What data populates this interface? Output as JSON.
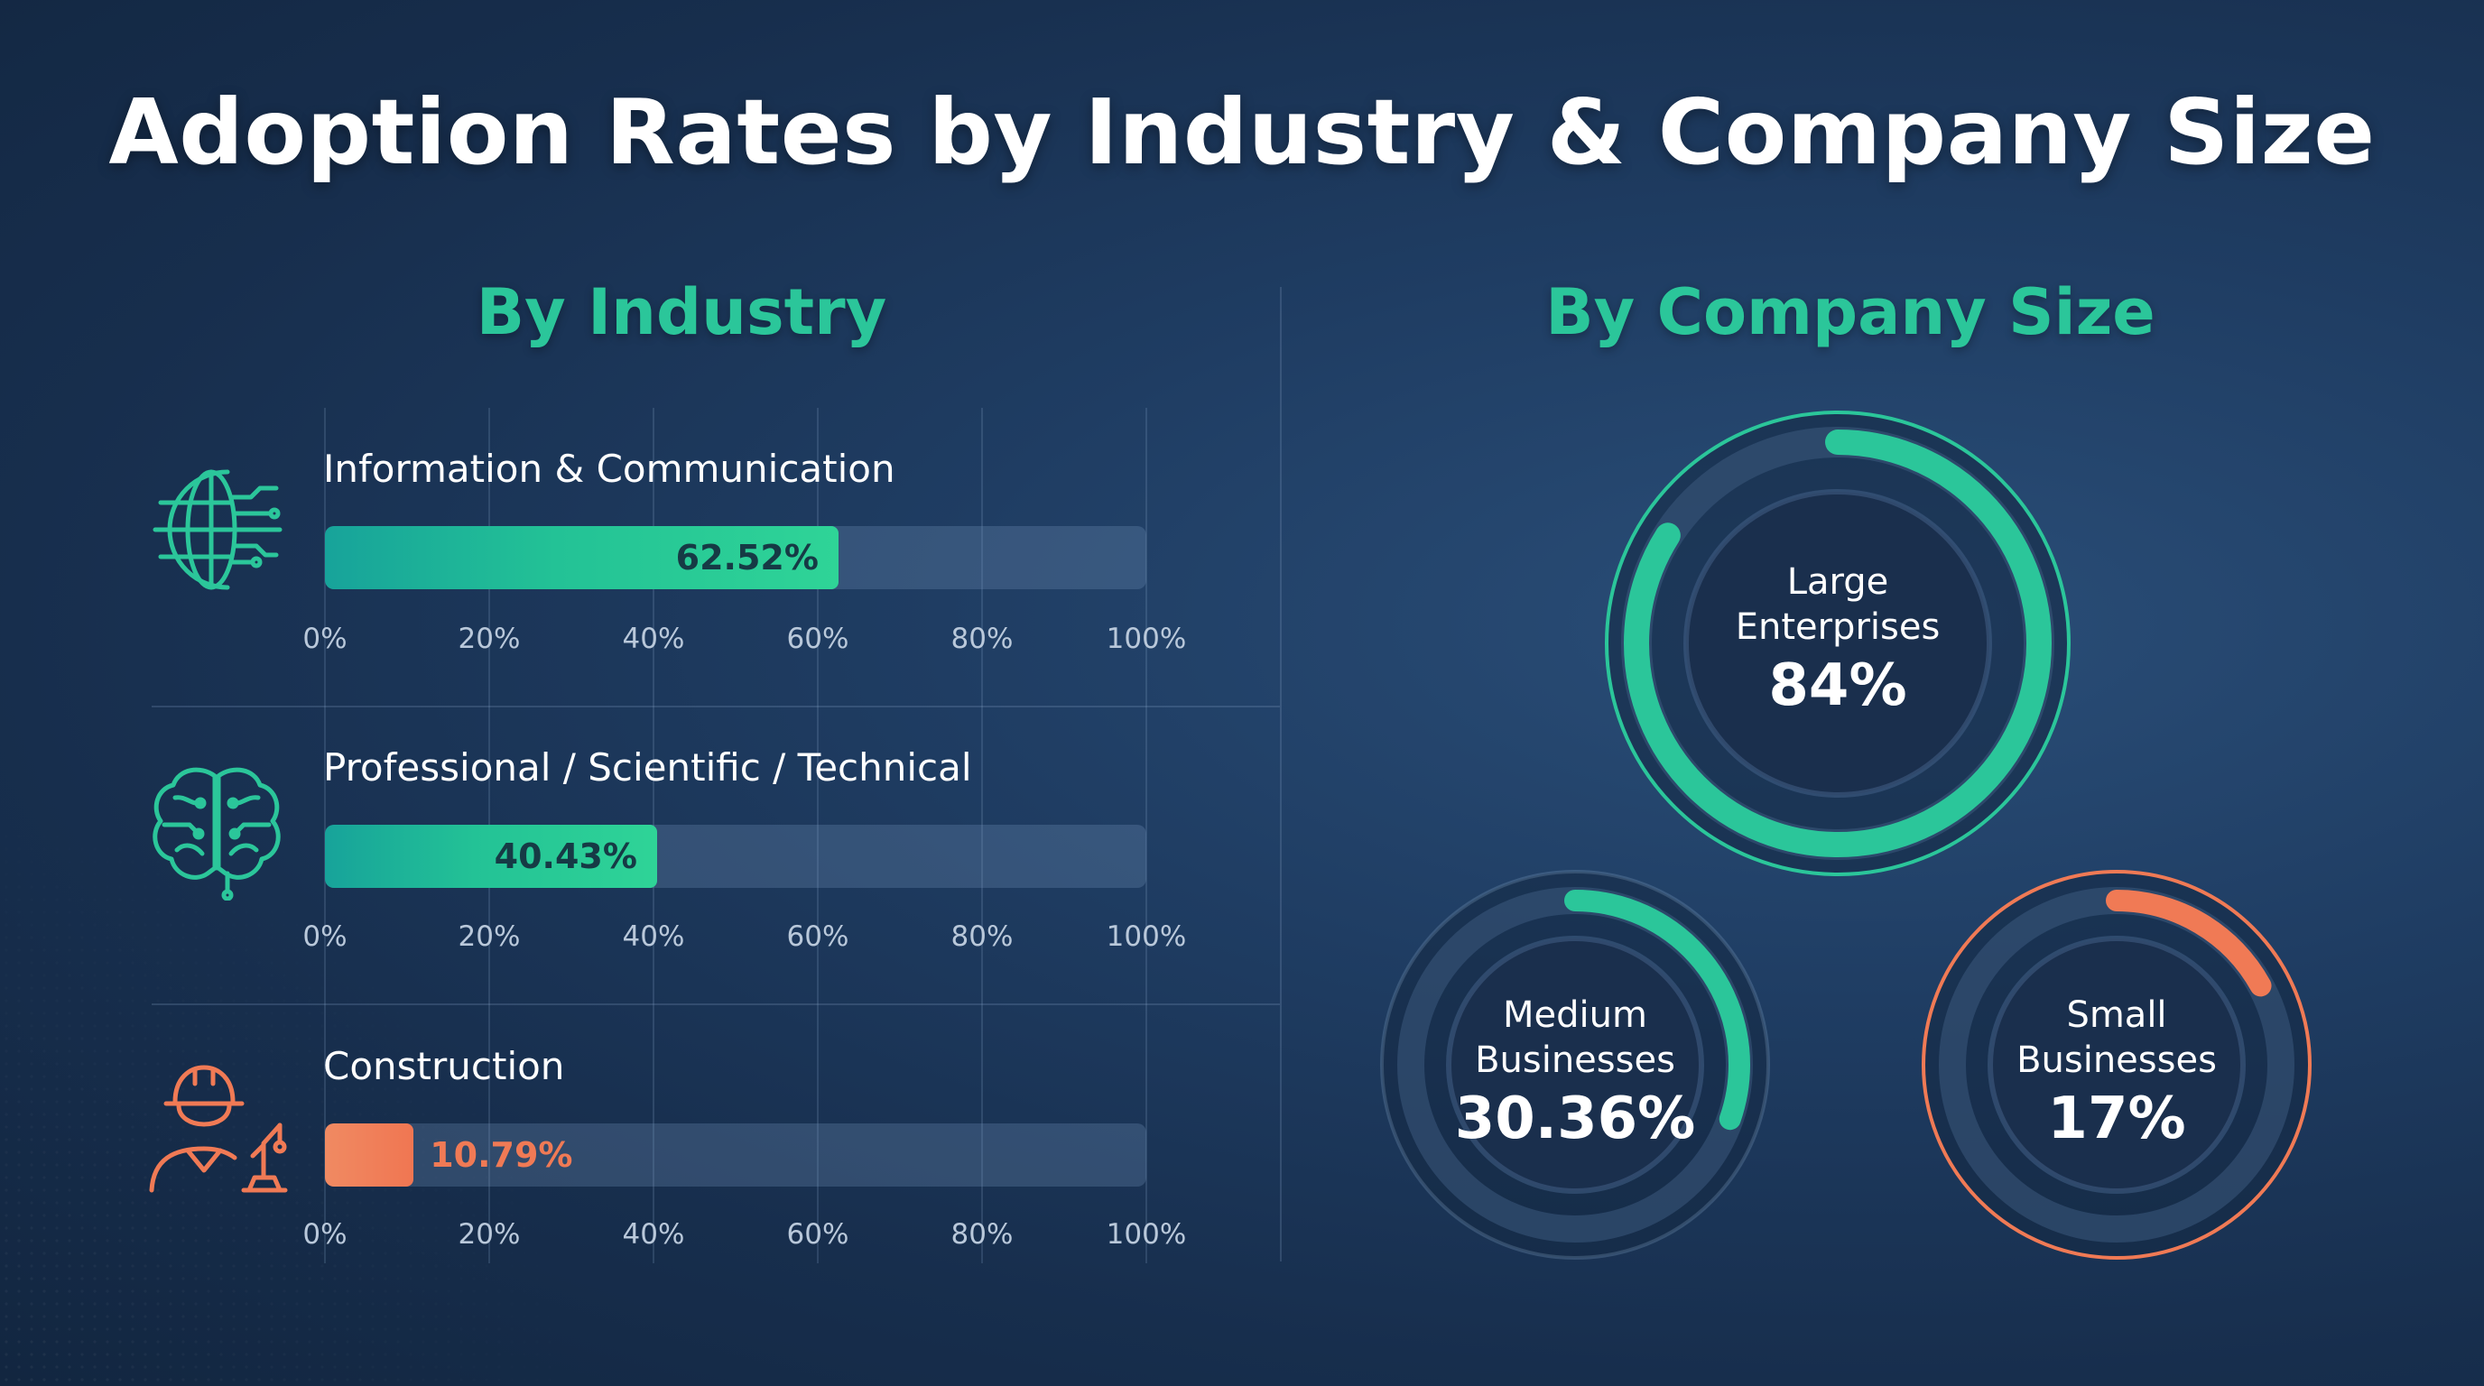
{
  "title": "Adoption Rates by Industry & Company Size",
  "sections": {
    "industry": "By Industry",
    "company_size": "By Company Size"
  },
  "colors": {
    "teal": "#2bc69a",
    "orange": "#f07a55",
    "background": "#1b3558"
  },
  "chart_data": [
    {
      "type": "bar",
      "orientation": "horizontal",
      "title": "By Industry",
      "categories": [
        "Information & Communication",
        "Professional / Scientific / Technical",
        "Construction"
      ],
      "values": [
        62.52,
        40.43,
        10.79
      ],
      "value_labels": [
        "62.52%",
        "40.43%",
        "10.79%"
      ],
      "bar_colors": [
        "teal",
        "teal",
        "orange"
      ],
      "icons": [
        "globe-circuit-icon",
        "brain-circuit-icon",
        "construction-worker-icon"
      ],
      "xlim": [
        0,
        100
      ],
      "x_ticks": [
        "0%",
        "20%",
        "40%",
        "60%",
        "80%",
        "100%"
      ],
      "grid": true
    },
    {
      "type": "pie",
      "style": "donut",
      "title": "By Company Size",
      "categories": [
        "Large Enterprises",
        "Medium Businesses",
        "Small Businesses"
      ],
      "values": [
        84,
        30.36,
        17
      ],
      "value_labels": [
        "84%",
        "30.36%",
        "17%"
      ],
      "label_lines": [
        [
          "Large",
          "Enterprises"
        ],
        [
          "Medium",
          "Businesses"
        ],
        [
          "Small",
          "Businesses"
        ]
      ],
      "ring_colors": [
        "teal",
        "teal",
        "orange"
      ]
    }
  ]
}
